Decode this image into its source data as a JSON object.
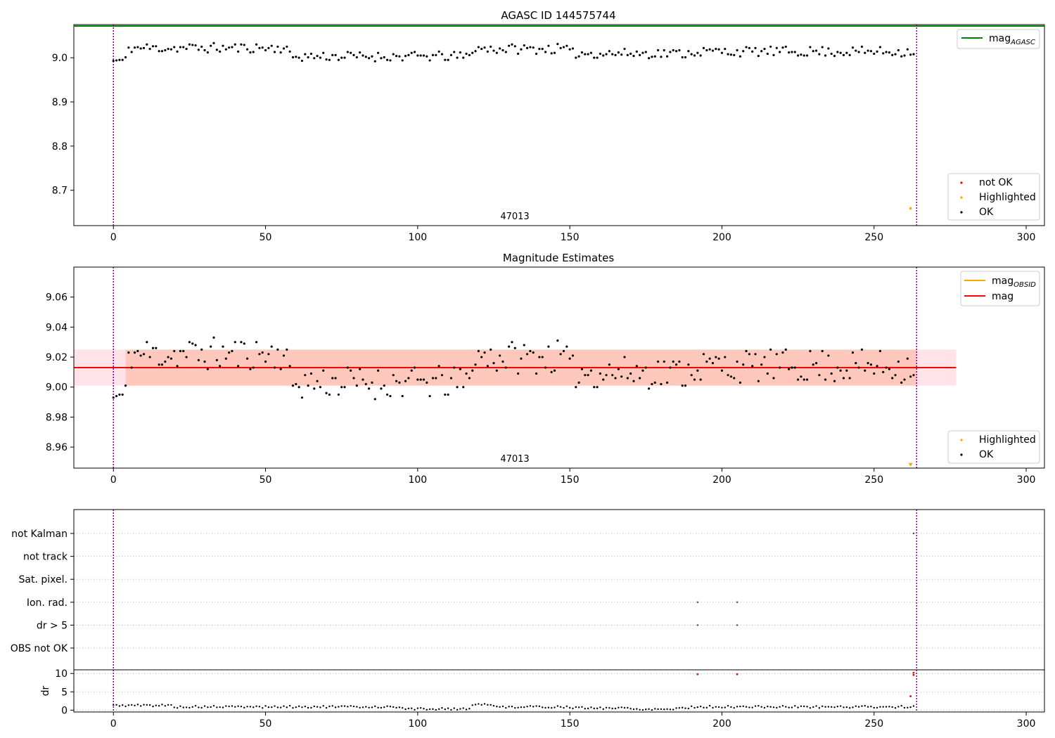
{
  "chart_data": [
    {
      "type": "scatter",
      "title": "AGASC ID 144575744",
      "xlim": [
        -13,
        306
      ],
      "ylim": [
        8.62,
        9.075
      ],
      "xticks": [
        0,
        50,
        100,
        150,
        200,
        250,
        300
      ],
      "yticks": [
        8.7,
        8.8,
        8.9,
        9.0
      ],
      "vlines": [
        0,
        264
      ],
      "obsid_label": "47013",
      "mag_agasc": 9.075,
      "series_seed": 11,
      "series": [
        {
          "name": "not OK",
          "color": "#ff0000",
          "points": []
        },
        {
          "name": "Highlighted",
          "color": "#ffa500",
          "points": [
            [
              262,
              8.659
            ]
          ]
        },
        {
          "name": "OK",
          "color": "#000000",
          "points": "generated"
        }
      ],
      "legend_lines": [
        {
          "label": "mag",
          "sub": "AGASC",
          "color": "#008000"
        }
      ],
      "legend_points": [
        {
          "label": "not OK",
          "color": "#ff0000"
        },
        {
          "label": "Highlighted",
          "color": "#ffa500"
        },
        {
          "label": "OK",
          "color": "#000000"
        }
      ],
      "grid": false
    },
    {
      "type": "scatter",
      "title": "Magnitude Estimates",
      "xlim": [
        -13,
        306
      ],
      "ylim": [
        8.946,
        9.08
      ],
      "xticks": [
        0,
        50,
        100,
        150,
        200,
        250,
        300
      ],
      "yticks": [
        8.96,
        8.98,
        9.0,
        9.02,
        9.04,
        9.06
      ],
      "vlines": [
        0,
        264
      ],
      "obsid_label": "47013",
      "mag": 9.013,
      "mag_band": [
        9.001,
        9.025
      ],
      "band_x": [
        -13,
        277
      ],
      "series": [
        {
          "name": "Highlighted",
          "color": "#ffa500",
          "points": [
            [
              262,
              8.948
            ]
          ]
        },
        {
          "name": "OK",
          "color": "#000000",
          "points": "generated"
        }
      ],
      "legend_lines": [
        {
          "label": "mag",
          "sub": "OBSID",
          "color": "#ffa500"
        },
        {
          "label": "mag",
          "sub": "",
          "color": "#ff0000"
        }
      ],
      "legend_points": [
        {
          "label": "Highlighted",
          "color": "#ffa500"
        },
        {
          "label": "OK",
          "color": "#000000"
        }
      ],
      "grid": false
    },
    {
      "type": "scatter",
      "title": "",
      "xlim": [
        -13,
        306
      ],
      "categories": [
        "not Kalman",
        "not track",
        "Sat. pixel.",
        "Ion. rad.",
        "dr > 5",
        "OBS not OK"
      ],
      "flag_points": {
        "Ion. rad.": [
          192,
          205
        ],
        "dr > 5": [
          192,
          205
        ],
        "not Kalman": [
          263
        ]
      },
      "vlines": [
        0,
        264
      ],
      "grid": "dotted"
    },
    {
      "type": "scatter",
      "title": "",
      "ylabel": "dr",
      "xlim": [
        -13,
        306
      ],
      "ylim": [
        -0.5,
        11
      ],
      "xticks": [
        0,
        50,
        100,
        150,
        200,
        250,
        300
      ],
      "yticks": [
        0,
        5,
        10
      ],
      "vlines": [
        0,
        264
      ],
      "red_points": [
        [
          192,
          9.8
        ],
        [
          205,
          9.8
        ],
        [
          262,
          3.8
        ],
        [
          263,
          9.6
        ],
        [
          263,
          10.2
        ]
      ],
      "series": [
        {
          "name": "OK",
          "color": "#000000",
          "points": "generated"
        }
      ],
      "grid": "dotted"
    }
  ]
}
